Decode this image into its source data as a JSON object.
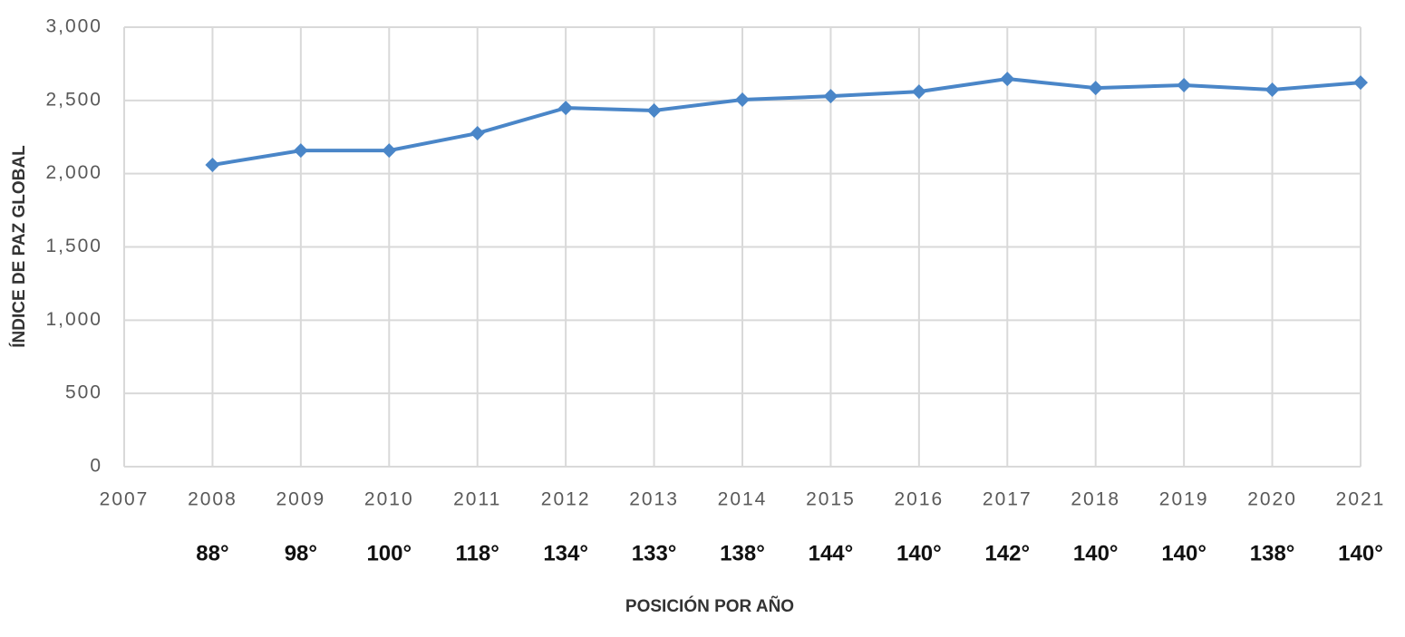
{
  "chart_data": {
    "type": "line",
    "x_label": "POSICIÓN POR AÑO",
    "y_label": "ÍNDICE DE PAZ GLOBAL",
    "x": [
      2008,
      2009,
      2010,
      2011,
      2012,
      2013,
      2014,
      2015,
      2016,
      2017,
      2018,
      2019,
      2020,
      2021
    ],
    "series": [
      {
        "color": "#4a86c8",
        "values": [
          2060,
          2158,
          2158,
          2276,
          2449,
          2431,
          2505,
          2529,
          2560,
          2647,
          2585,
          2604,
          2573,
          2622
        ]
      }
    ],
    "rank_labels": [
      "88°",
      "98°",
      "100°",
      "118°",
      "134°",
      "133°",
      "138°",
      "144°",
      "140°",
      "142°",
      "140°",
      "140°",
      "138°",
      "140°"
    ],
    "xlim": [
      2007,
      2021
    ],
    "xticks": [
      2007,
      2008,
      2009,
      2010,
      2011,
      2012,
      2013,
      2014,
      2015,
      2016,
      2017,
      2018,
      2019,
      2020,
      2021
    ],
    "ylim": [
      0,
      3000
    ],
    "yticks": [
      0,
      500,
      {
        "value": 1000,
        "label": "1,000"
      },
      {
        "value": 1500,
        "label": "1,500"
      },
      {
        "value": 2000,
        "label": "2,000"
      },
      {
        "value": 2500,
        "label": "2,500"
      },
      {
        "value": 3000,
        "label": "3,000"
      }
    ],
    "grid": true
  }
}
